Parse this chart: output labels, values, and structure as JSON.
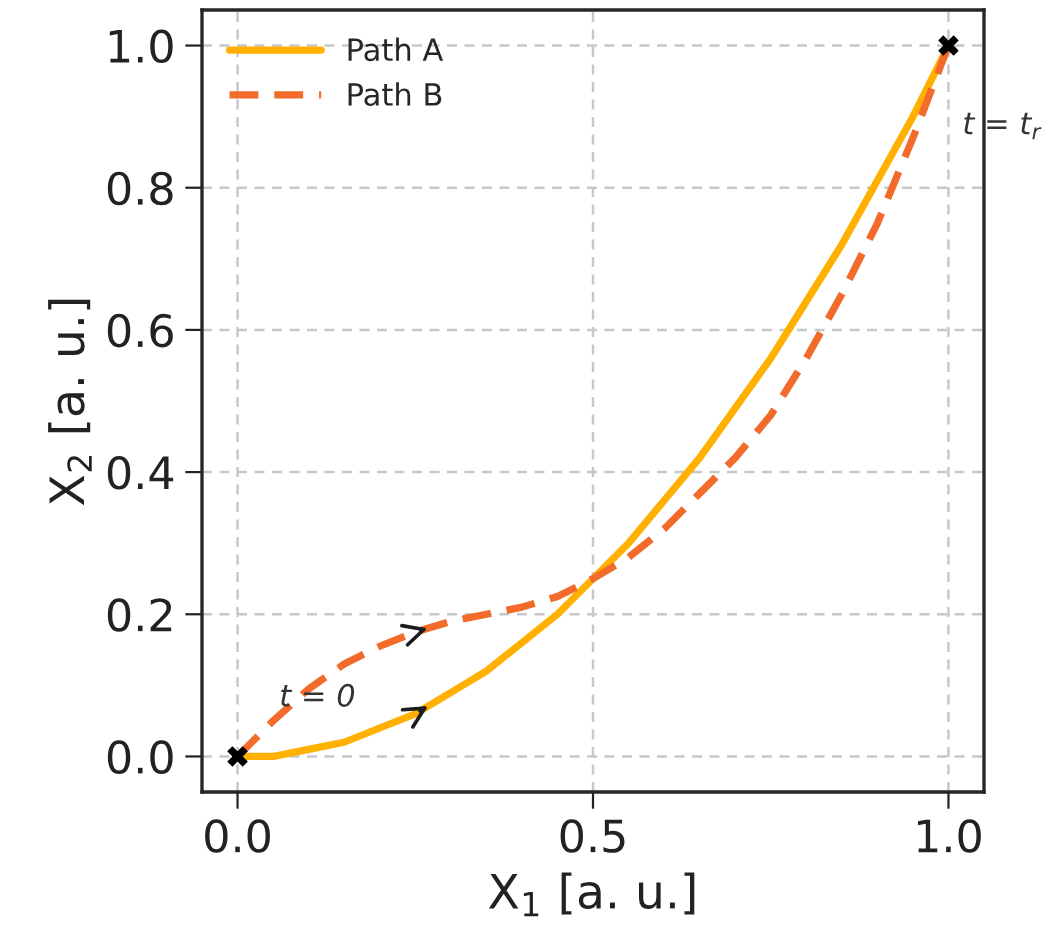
{
  "chart_data": {
    "type": "line",
    "xlabel": "X$_{1}$ [a. u.]",
    "ylabel": "X$_{2}$ [a. u.]",
    "x": [
      0,
      0.05,
      0.1,
      0.15,
      0.2,
      0.25,
      0.3,
      0.35,
      0.4,
      0.45,
      0.5,
      0.55,
      0.6,
      0.65,
      0.7,
      0.75,
      0.8,
      0.85,
      0.9,
      0.95,
      1
    ],
    "series": [
      {
        "name": "Path A",
        "color": "#ffb000",
        "line_style": "solid",
        "values": [
          0,
          0,
          0.01,
          0.02,
          0.04,
          0.06,
          0.09,
          0.12,
          0.16,
          0.2,
          0.25,
          0.3,
          0.36,
          0.42,
          0.49,
          0.56,
          0.64,
          0.72,
          0.81,
          0.9,
          1
        ]
      },
      {
        "name": "Path B",
        "color": "#f26b2a",
        "line_style": "dashed",
        "values": [
          0,
          0.05,
          0.095,
          0.13,
          0.155,
          0.175,
          0.19,
          0.2,
          0.21,
          0.225,
          0.25,
          0.28,
          0.32,
          0.37,
          0.42,
          0.48,
          0.56,
          0.65,
          0.75,
          0.87,
          1
        ]
      },
      {
        "type": "scatter",
        "color": "#000000",
        "marker": "cross",
        "x": [
          0,
          1
        ],
        "values": [
          0,
          1
        ]
      }
    ],
    "annotations": [
      {
        "text": "t = 0",
        "x": 0,
        "y": 0
      },
      {
        "text": "t = t$_{r}$",
        "x": 1,
        "y": 1
      }
    ],
    "xlim": [
      -0.05,
      1.05
    ],
    "ylim": [
      -0.05,
      1.05
    ],
    "xticks": [
      {
        "value": 0,
        "label": "0.0"
      },
      0.5,
      {
        "value": 1,
        "label": "1.0"
      }
    ],
    "yticks": [
      {
        "value": 0,
        "label": "0.0"
      },
      0.2,
      0.4,
      0.6,
      0.8,
      {
        "value": 1,
        "label": "1.0"
      }
    ],
    "grid": true,
    "legend": "top left"
  }
}
